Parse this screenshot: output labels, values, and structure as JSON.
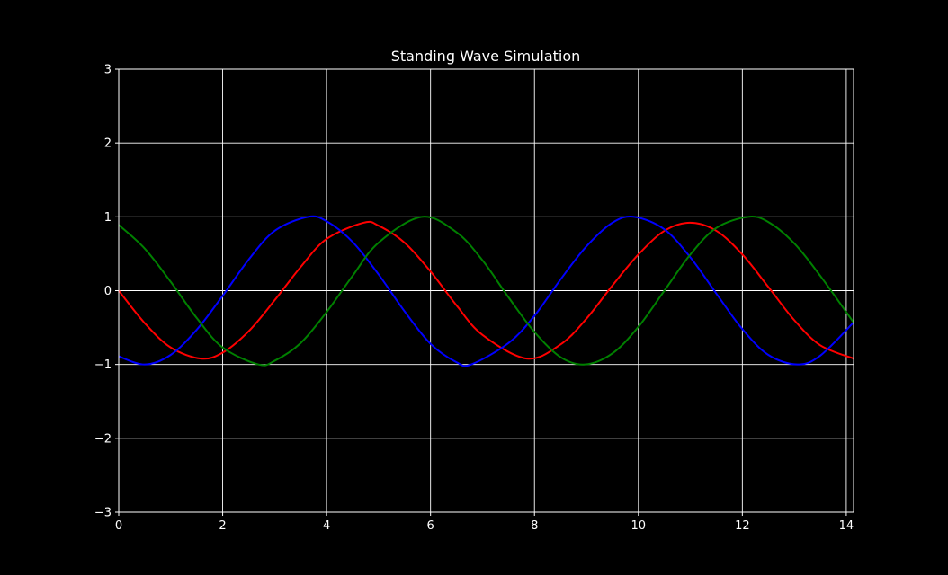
{
  "chart_data": {
    "type": "line",
    "title": "Standing Wave Simulation",
    "xlabel": "",
    "ylabel": "",
    "xlim": [
      0,
      14.14
    ],
    "ylim": [
      -3,
      3
    ],
    "x_ticks": [
      0,
      2,
      4,
      6,
      8,
      10,
      12,
      14
    ],
    "y_ticks": [
      -3,
      -2,
      -1,
      0,
      1,
      2,
      3
    ],
    "x_tick_labels": [
      "0",
      "2",
      "4",
      "6",
      "8",
      "10",
      "12",
      "14"
    ],
    "y_tick_labels": [
      "−3",
      "−2",
      "−1",
      "0",
      "1",
      "2",
      "3"
    ],
    "grid": true,
    "background": "#000000",
    "foreground": "#ffffff",
    "series": [
      {
        "color": "#ff0000",
        "x": [
          0,
          0.5,
          1.0,
          1.58,
          2.0,
          2.5,
          3.0,
          3.5,
          4.0,
          4.71,
          5.0,
          5.5,
          6.0,
          6.5,
          7.0,
          7.85,
          8.5,
          9.0,
          9.5,
          10.0,
          10.5,
          10.99,
          11.5,
          12.0,
          12.5,
          13.0,
          13.5,
          14.14
        ],
        "y": [
          0.0,
          -0.44,
          -0.77,
          -0.92,
          -0.84,
          -0.55,
          -0.13,
          0.32,
          0.7,
          0.92,
          0.88,
          0.65,
          0.26,
          -0.2,
          -0.6,
          -0.92,
          -0.73,
          -0.38,
          0.07,
          0.49,
          0.81,
          0.92,
          0.81,
          0.49,
          0.05,
          -0.4,
          -0.74,
          -0.92
        ]
      },
      {
        "color": "#0000ff",
        "x": [
          0,
          0.5,
          1.0,
          1.5,
          2.0,
          2.5,
          3.0,
          3.64,
          4.0,
          4.5,
          5.0,
          5.5,
          6.0,
          6.5,
          6.78,
          7.5,
          8.0,
          8.5,
          9.0,
          9.5,
          9.92,
          10.5,
          11.0,
          11.5,
          12.0,
          12.5,
          13.06,
          13.5,
          14.14
        ],
        "y": [
          -0.89,
          -1.0,
          -0.87,
          -0.53,
          -0.07,
          0.42,
          0.81,
          1.0,
          0.94,
          0.66,
          0.22,
          -0.28,
          -0.72,
          -0.97,
          -1.0,
          -0.71,
          -0.34,
          0.15,
          0.6,
          0.92,
          1.0,
          0.83,
          0.45,
          -0.04,
          -0.52,
          -0.87,
          -1.0,
          -0.88,
          -0.43
        ]
      },
      {
        "color": "#008000",
        "x": [
          0,
          0.5,
          1.0,
          1.5,
          2.0,
          2.69,
          3.0,
          3.5,
          4.0,
          4.5,
          5.0,
          5.83,
          6.5,
          7.0,
          7.5,
          8.0,
          8.5,
          8.97,
          9.5,
          10.0,
          10.5,
          11.0,
          11.5,
          12.11,
          12.5,
          13.0,
          13.5,
          14.14
        ],
        "y": [
          0.89,
          0.57,
          0.12,
          -0.37,
          -0.77,
          -1.0,
          -0.95,
          -0.71,
          -0.29,
          0.2,
          0.65,
          1.0,
          0.79,
          0.41,
          -0.09,
          -0.56,
          -0.9,
          -1.0,
          -0.85,
          -0.49,
          0.0,
          0.49,
          0.85,
          1.0,
          0.93,
          0.64,
          0.2,
          -0.43
        ]
      }
    ]
  }
}
